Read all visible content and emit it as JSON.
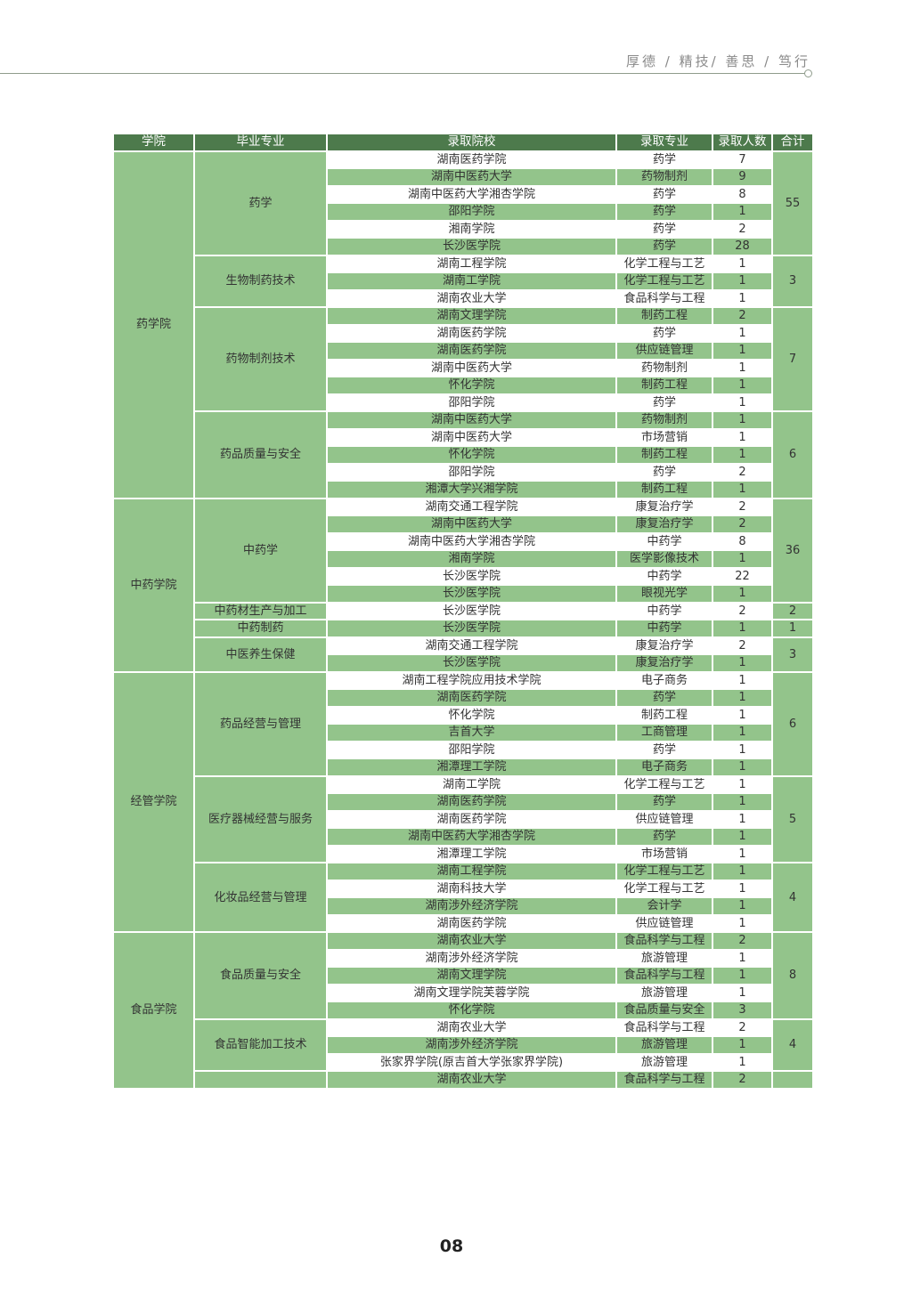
{
  "header": {
    "motto": "厚德 / 精技/ 善思 / 笃行"
  },
  "colors": {
    "header_bg": "#4d7a4c",
    "row_green": "#93c48b",
    "row_white": "#ffffff"
  },
  "table": {
    "columns": [
      "学院",
      "毕业专业",
      "录取院校",
      "录取专业",
      "录取人数",
      "合计"
    ],
    "colleges": [
      {
        "name": "药学院",
        "majors": [
          {
            "name": "药学",
            "total": "55",
            "rows": [
              [
                "湖南医药学院",
                "药学",
                "7"
              ],
              [
                "湖南中医药大学",
                "药物制剂",
                "9"
              ],
              [
                "湖南中医药大学湘杏学院",
                "药学",
                "8"
              ],
              [
                "邵阳学院",
                "药学",
                "1"
              ],
              [
                "湘南学院",
                "药学",
                "2"
              ],
              [
                "长沙医学院",
                "药学",
                "28"
              ]
            ]
          },
          {
            "name": "生物制药技术",
            "total": "3",
            "rows": [
              [
                "湖南工程学院",
                "化学工程与工艺",
                "1"
              ],
              [
                "湖南工学院",
                "化学工程与工艺",
                "1"
              ],
              [
                "湖南农业大学",
                "食品科学与工程",
                "1"
              ]
            ]
          },
          {
            "name": "药物制剂技术",
            "total": "7",
            "rows": [
              [
                "湖南文理学院",
                "制药工程",
                "2"
              ],
              [
                "湖南医药学院",
                "药学",
                "1"
              ],
              [
                "湖南医药学院",
                "供应链管理",
                "1"
              ],
              [
                "湖南中医药大学",
                "药物制剂",
                "1"
              ],
              [
                "怀化学院",
                "制药工程",
                "1"
              ],
              [
                "邵阳学院",
                "药学",
                "1"
              ]
            ]
          },
          {
            "name": "药品质量与安全",
            "total": "6",
            "rows": [
              [
                "湖南中医药大学",
                "药物制剂",
                "1"
              ],
              [
                "湖南中医药大学",
                "市场营销",
                "1"
              ],
              [
                "怀化学院",
                "制药工程",
                "1"
              ],
              [
                "邵阳学院",
                "药学",
                "2"
              ],
              [
                "湘潭大学兴湘学院",
                "制药工程",
                "1"
              ]
            ]
          }
        ]
      },
      {
        "name": "中药学院",
        "majors": [
          {
            "name": "中药学",
            "total": "36",
            "rows": [
              [
                "湖南交通工程学院",
                "康复治疗学",
                "2"
              ],
              [
                "湖南中医药大学",
                "康复治疗学",
                "2"
              ],
              [
                "湖南中医药大学湘杏学院",
                "中药学",
                "8"
              ],
              [
                "湘南学院",
                "医学影像技术",
                "1"
              ],
              [
                "长沙医学院",
                "中药学",
                "22"
              ],
              [
                "长沙医学院",
                "眼视光学",
                "1"
              ]
            ]
          },
          {
            "name": "中药材生产与加工",
            "total": "2",
            "rows": [
              [
                "长沙医学院",
                "中药学",
                "2"
              ]
            ]
          },
          {
            "name": "中药制药",
            "total": "1",
            "rows": [
              [
                "长沙医学院",
                "中药学",
                "1"
              ]
            ]
          },
          {
            "name": "中医养生保健",
            "total": "3",
            "rows": [
              [
                "湖南交通工程学院",
                "康复治疗学",
                "2"
              ],
              [
                "长沙医学院",
                "康复治疗学",
                "1"
              ]
            ]
          }
        ]
      },
      {
        "name": "经管学院",
        "majors": [
          {
            "name": "药品经营与管理",
            "total": "6",
            "rows": [
              [
                "湖南工程学院应用技术学院",
                "电子商务",
                "1"
              ],
              [
                "湖南医药学院",
                "药学",
                "1"
              ],
              [
                "怀化学院",
                "制药工程",
                "1"
              ],
              [
                "吉首大学",
                "工商管理",
                "1"
              ],
              [
                "邵阳学院",
                "药学",
                "1"
              ],
              [
                "湘潭理工学院",
                "电子商务",
                "1"
              ]
            ]
          },
          {
            "name": "医疗器械经营与服务",
            "total": "5",
            "rows": [
              [
                "湖南工学院",
                "化学工程与工艺",
                "1"
              ],
              [
                "湖南医药学院",
                "药学",
                "1"
              ],
              [
                "湖南医药学院",
                "供应链管理",
                "1"
              ],
              [
                "湖南中医药大学湘杏学院",
                "药学",
                "1"
              ],
              [
                "湘潭理工学院",
                "市场营销",
                "1"
              ]
            ]
          },
          {
            "name": "化妆品经营与管理",
            "total": "4",
            "rows": [
              [
                "湖南工程学院",
                "化学工程与工艺",
                "1"
              ],
              [
                "湖南科技大学",
                "化学工程与工艺",
                "1"
              ],
              [
                "湖南涉外经济学院",
                "会计学",
                "1"
              ],
              [
                "湖南医药学院",
                "供应链管理",
                "1"
              ]
            ]
          }
        ]
      },
      {
        "name": "食品学院",
        "majors": [
          {
            "name": "食品质量与安全",
            "total": "8",
            "rows": [
              [
                "湖南农业大学",
                "食品科学与工程",
                "2"
              ],
              [
                "湖南涉外经济学院",
                "旅游管理",
                "1"
              ],
              [
                "湖南文理学院",
                "食品科学与工程",
                "1"
              ],
              [
                "湖南文理学院芙蓉学院",
                "旅游管理",
                "1"
              ],
              [
                "怀化学院",
                "食品质量与安全",
                "3"
              ]
            ]
          },
          {
            "name": "食品智能加工技术",
            "total": "4",
            "rows": [
              [
                "湖南农业大学",
                "食品科学与工程",
                "2"
              ],
              [
                "湖南涉外经济学院",
                "旅游管理",
                "1"
              ],
              [
                "张家界学院(原吉首大学张家界学院)",
                "旅游管理",
                "1"
              ]
            ]
          },
          {
            "name": "",
            "total": "",
            "rows": [
              [
                "湖南农业大学",
                "食品科学与工程",
                "2"
              ]
            ]
          }
        ]
      }
    ]
  },
  "footer": {
    "page_number": "08"
  }
}
